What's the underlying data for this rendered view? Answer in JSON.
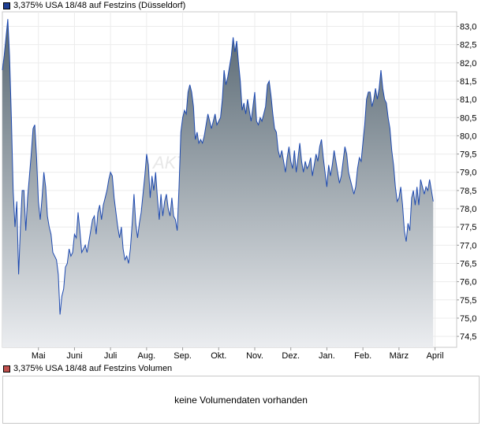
{
  "legend": {
    "price_label": "3,375% USA 18/48 auf Festzins (Düsseldorf)",
    "price_color": "#1e3f94",
    "volume_label": "3,375% USA 18/48 auf Festzins Volumen",
    "volume_color": "#c0504d"
  },
  "volume": {
    "message": "keine Volumendaten vorhanden"
  },
  "watermark": "AKTIEN",
  "chart_data": {
    "type": "area",
    "series_name": "3,375% USA 18/48 auf Festzins (Düsseldorf)",
    "line_color": "#1e4ab0",
    "fill_top_color": "#556570",
    "fill_bottom_color": "#ebedf0",
    "ylim": [
      74.2,
      83.4
    ],
    "yticks": [
      "83,0",
      "82,5",
      "82,0",
      "81,5",
      "81,0",
      "80,5",
      "80,0",
      "79,5",
      "79,0",
      "78,5",
      "78,0",
      "77,5",
      "77,0",
      "76,5",
      "76,0",
      "75,5",
      "75,0",
      "74,5"
    ],
    "ytick_values": [
      83.0,
      82.5,
      82.0,
      81.5,
      81.0,
      80.5,
      80.0,
      79.5,
      79.0,
      78.5,
      78.0,
      77.5,
      77.0,
      76.5,
      76.0,
      75.5,
      75.0,
      74.5
    ],
    "x_unit": "months since start of April",
    "xlim": [
      0,
      12.6
    ],
    "xticks": [
      {
        "label": "Mai",
        "x": 1.0
      },
      {
        "label": "Juni",
        "x": 2.0
      },
      {
        "label": "Juli",
        "x": 3.0
      },
      {
        "label": "Aug.",
        "x": 4.0
      },
      {
        "label": "Sep.",
        "x": 5.0
      },
      {
        "label": "Okt.",
        "x": 6.0
      },
      {
        "label": "Nov.",
        "x": 7.0
      },
      {
        "label": "Dez.",
        "x": 8.0
      },
      {
        "label": "Jan.",
        "x": 9.0
      },
      {
        "label": "Feb.",
        "x": 10.0
      },
      {
        "label": "März",
        "x": 11.0
      },
      {
        "label": "April",
        "x": 12.0
      }
    ],
    "points": [
      [
        0.0,
        81.8
      ],
      [
        0.05,
        82.2
      ],
      [
        0.1,
        82.7
      ],
      [
        0.15,
        83.2
      ],
      [
        0.2,
        82.2
      ],
      [
        0.25,
        80.5
      ],
      [
        0.3,
        78.5
      ],
      [
        0.35,
        77.5
      ],
      [
        0.4,
        78.2
      ],
      [
        0.45,
        76.2
      ],
      [
        0.5,
        77.5
      ],
      [
        0.55,
        78.5
      ],
      [
        0.6,
        78.5
      ],
      [
        0.65,
        77.4
      ],
      [
        0.7,
        78.3
      ],
      [
        0.75,
        78.9
      ],
      [
        0.8,
        79.5
      ],
      [
        0.85,
        80.2
      ],
      [
        0.9,
        80.3
      ],
      [
        0.95,
        79.4
      ],
      [
        1.0,
        78.2
      ],
      [
        1.05,
        77.7
      ],
      [
        1.1,
        78.3
      ],
      [
        1.15,
        79.0
      ],
      [
        1.2,
        78.6
      ],
      [
        1.25,
        77.8
      ],
      [
        1.3,
        77.5
      ],
      [
        1.35,
        77.3
      ],
      [
        1.4,
        76.8
      ],
      [
        1.45,
        76.7
      ],
      [
        1.5,
        76.6
      ],
      [
        1.55,
        76.2
      ],
      [
        1.6,
        75.1
      ],
      [
        1.65,
        75.6
      ],
      [
        1.7,
        75.8
      ],
      [
        1.75,
        76.4
      ],
      [
        1.8,
        76.5
      ],
      [
        1.85,
        76.9
      ],
      [
        1.9,
        76.7
      ],
      [
        1.95,
        76.8
      ],
      [
        2.0,
        77.3
      ],
      [
        2.05,
        77.2
      ],
      [
        2.1,
        77.9
      ],
      [
        2.15,
        77.4
      ],
      [
        2.2,
        76.8
      ],
      [
        2.25,
        76.9
      ],
      [
        2.3,
        77.0
      ],
      [
        2.35,
        76.8
      ],
      [
        2.4,
        77.1
      ],
      [
        2.45,
        77.4
      ],
      [
        2.5,
        77.7
      ],
      [
        2.55,
        77.8
      ],
      [
        2.6,
        77.3
      ],
      [
        2.65,
        77.9
      ],
      [
        2.7,
        78.1
      ],
      [
        2.75,
        77.7
      ],
      [
        2.8,
        78.1
      ],
      [
        2.85,
        78.3
      ],
      [
        2.9,
        78.5
      ],
      [
        2.95,
        78.8
      ],
      [
        3.0,
        79.0
      ],
      [
        3.05,
        78.9
      ],
      [
        3.1,
        78.3
      ],
      [
        3.15,
        77.9
      ],
      [
        3.2,
        77.5
      ],
      [
        3.25,
        77.2
      ],
      [
        3.3,
        77.5
      ],
      [
        3.35,
        76.9
      ],
      [
        3.4,
        76.6
      ],
      [
        3.45,
        76.7
      ],
      [
        3.5,
        76.5
      ],
      [
        3.55,
        76.9
      ],
      [
        3.6,
        77.6
      ],
      [
        3.65,
        78.4
      ],
      [
        3.7,
        77.6
      ],
      [
        3.75,
        77.2
      ],
      [
        3.8,
        77.6
      ],
      [
        3.85,
        77.9
      ],
      [
        3.9,
        78.4
      ],
      [
        3.95,
        78.9
      ],
      [
        4.0,
        79.5
      ],
      [
        4.05,
        79.2
      ],
      [
        4.1,
        78.3
      ],
      [
        4.15,
        78.9
      ],
      [
        4.2,
        78.5
      ],
      [
        4.25,
        79.0
      ],
      [
        4.3,
        78.3
      ],
      [
        4.35,
        77.7
      ],
      [
        4.4,
        78.4
      ],
      [
        4.45,
        77.8
      ],
      [
        4.5,
        78.2
      ],
      [
        4.55,
        78.4
      ],
      [
        4.6,
        78.0
      ],
      [
        4.65,
        77.8
      ],
      [
        4.7,
        78.3
      ],
      [
        4.75,
        77.8
      ],
      [
        4.8,
        77.7
      ],
      [
        4.85,
        77.4
      ],
      [
        4.9,
        78.6
      ],
      [
        4.95,
        80.1
      ],
      [
        5.0,
        80.5
      ],
      [
        5.05,
        80.7
      ],
      [
        5.1,
        80.6
      ],
      [
        5.15,
        81.2
      ],
      [
        5.2,
        81.4
      ],
      [
        5.25,
        81.2
      ],
      [
        5.3,
        80.8
      ],
      [
        5.35,
        79.9
      ],
      [
        5.4,
        80.1
      ],
      [
        5.45,
        79.8
      ],
      [
        5.5,
        79.9
      ],
      [
        5.55,
        79.8
      ],
      [
        5.6,
        80.0
      ],
      [
        5.65,
        80.3
      ],
      [
        5.7,
        80.6
      ],
      [
        5.75,
        80.4
      ],
      [
        5.8,
        80.2
      ],
      [
        5.85,
        80.4
      ],
      [
        5.9,
        80.6
      ],
      [
        5.95,
        80.3
      ],
      [
        6.0,
        80.4
      ],
      [
        6.05,
        80.5
      ],
      [
        6.1,
        81.0
      ],
      [
        6.15,
        81.8
      ],
      [
        6.2,
        81.4
      ],
      [
        6.25,
        81.6
      ],
      [
        6.3,
        81.9
      ],
      [
        6.35,
        82.2
      ],
      [
        6.4,
        82.7
      ],
      [
        6.45,
        82.3
      ],
      [
        6.5,
        82.6
      ],
      [
        6.55,
        82.0
      ],
      [
        6.6,
        81.5
      ],
      [
        6.65,
        80.7
      ],
      [
        6.7,
        80.9
      ],
      [
        6.75,
        80.6
      ],
      [
        6.8,
        81.0
      ],
      [
        6.85,
        80.7
      ],
      [
        6.9,
        80.4
      ],
      [
        6.95,
        80.8
      ],
      [
        7.0,
        81.2
      ],
      [
        7.05,
        80.4
      ],
      [
        7.1,
        80.3
      ],
      [
        7.15,
        80.5
      ],
      [
        7.2,
        80.4
      ],
      [
        7.25,
        80.6
      ],
      [
        7.3,
        80.8
      ],
      [
        7.35,
        81.4
      ],
      [
        7.4,
        81.5
      ],
      [
        7.45,
        81.1
      ],
      [
        7.5,
        80.6
      ],
      [
        7.55,
        80.2
      ],
      [
        7.6,
        80.1
      ],
      [
        7.65,
        79.6
      ],
      [
        7.7,
        79.4
      ],
      [
        7.75,
        79.6
      ],
      [
        7.8,
        79.3
      ],
      [
        7.85,
        79.0
      ],
      [
        7.9,
        79.4
      ],
      [
        7.95,
        79.7
      ],
      [
        8.0,
        79.3
      ],
      [
        8.05,
        79.1
      ],
      [
        8.1,
        79.6
      ],
      [
        8.15,
        79.0
      ],
      [
        8.2,
        79.4
      ],
      [
        8.25,
        79.8
      ],
      [
        8.3,
        79.3
      ],
      [
        8.35,
        79.0
      ],
      [
        8.4,
        79.3
      ],
      [
        8.45,
        79.1
      ],
      [
        8.5,
        79.2
      ],
      [
        8.55,
        79.4
      ],
      [
        8.6,
        78.9
      ],
      [
        8.65,
        79.2
      ],
      [
        8.7,
        79.5
      ],
      [
        8.75,
        79.3
      ],
      [
        8.8,
        79.7
      ],
      [
        8.85,
        79.9
      ],
      [
        8.9,
        79.4
      ],
      [
        8.95,
        79.0
      ],
      [
        9.0,
        78.6
      ],
      [
        9.05,
        79.2
      ],
      [
        9.1,
        78.9
      ],
      [
        9.15,
        79.2
      ],
      [
        9.2,
        79.6
      ],
      [
        9.25,
        79.3
      ],
      [
        9.3,
        79.0
      ],
      [
        9.35,
        78.7
      ],
      [
        9.4,
        78.9
      ],
      [
        9.45,
        79.3
      ],
      [
        9.5,
        79.7
      ],
      [
        9.55,
        79.5
      ],
      [
        9.6,
        79.0
      ],
      [
        9.65,
        78.8
      ],
      [
        9.7,
        78.6
      ],
      [
        9.75,
        78.4
      ],
      [
        9.8,
        78.6
      ],
      [
        9.85,
        79.1
      ],
      [
        9.9,
        79.4
      ],
      [
        9.95,
        79.3
      ],
      [
        10.0,
        79.8
      ],
      [
        10.05,
        80.3
      ],
      [
        10.1,
        81.0
      ],
      [
        10.15,
        81.2
      ],
      [
        10.2,
        81.2
      ],
      [
        10.25,
        80.8
      ],
      [
        10.3,
        81.0
      ],
      [
        10.35,
        81.3
      ],
      [
        10.4,
        81.0
      ],
      [
        10.45,
        81.3
      ],
      [
        10.5,
        81.8
      ],
      [
        10.55,
        81.3
      ],
      [
        10.6,
        81.0
      ],
      [
        10.65,
        80.9
      ],
      [
        10.7,
        80.5
      ],
      [
        10.75,
        80.2
      ],
      [
        10.8,
        79.6
      ],
      [
        10.85,
        79.2
      ],
      [
        10.9,
        78.6
      ],
      [
        10.95,
        78.2
      ],
      [
        11.0,
        78.3
      ],
      [
        11.05,
        78.6
      ],
      [
        11.1,
        78.1
      ],
      [
        11.15,
        77.4
      ],
      [
        11.2,
        77.1
      ],
      [
        11.25,
        77.6
      ],
      [
        11.3,
        77.4
      ],
      [
        11.35,
        78.3
      ],
      [
        11.4,
        78.5
      ],
      [
        11.45,
        78.1
      ],
      [
        11.5,
        78.6
      ],
      [
        11.55,
        78.1
      ],
      [
        11.6,
        78.8
      ],
      [
        11.65,
        78.6
      ],
      [
        11.7,
        78.4
      ],
      [
        11.75,
        78.6
      ],
      [
        11.8,
        78.5
      ],
      [
        11.85,
        78.8
      ],
      [
        11.9,
        78.5
      ],
      [
        11.95,
        78.2
      ]
    ]
  }
}
